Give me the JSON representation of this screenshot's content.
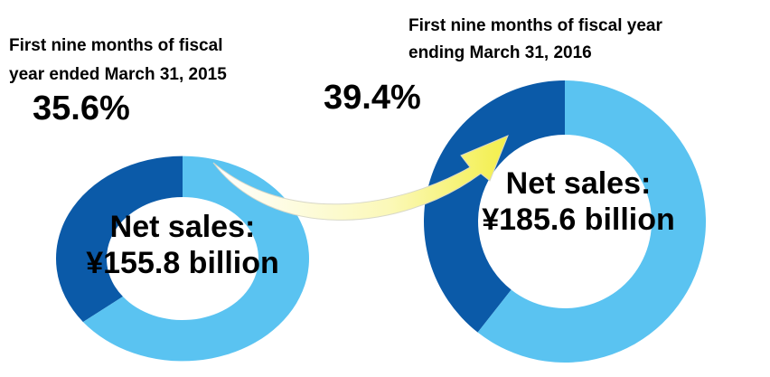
{
  "chart_data": [
    {
      "type": "donut",
      "title": [
        "First nine months of fiscal",
        "year ended March 31, 2015"
      ],
      "center_text": [
        "Net sales:",
        "¥155.8 billion"
      ],
      "values": [
        35.6,
        64.4
      ],
      "value_labels": [
        "35.6%",
        null
      ],
      "colors": [
        "#0b5aa8",
        "#5ac3f1"
      ]
    },
    {
      "type": "donut",
      "title": [
        "First nine months of fiscal year",
        "ending March 31, 2016"
      ],
      "center_text": [
        "Net sales:",
        "¥185.6 billion"
      ],
      "values": [
        39.4,
        60.6
      ],
      "value_labels": [
        "39.4%",
        null
      ],
      "colors": [
        "#0b5aa8",
        "#5ac3f1"
      ]
    }
  ]
}
